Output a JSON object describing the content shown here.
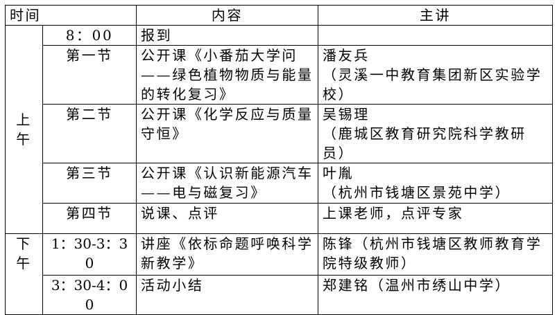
{
  "header": {
    "time": "时间",
    "content": "内容",
    "speaker": "主讲"
  },
  "morning": {
    "label": "上午",
    "rows": [
      {
        "time": "8：00",
        "content": "报到",
        "speaker": ""
      },
      {
        "time": "第一节",
        "content": "公开课《小番茄大学问——绿色植物物质与能量的转化复习》",
        "speaker": "潘友兵\n（灵溪一中教育集团新区实验学校）"
      },
      {
        "time": "第二节",
        "content": "公开课《化学反应与质量守恒》",
        "speaker": "吴锡理\n（鹿城区教育研究院科学教研员）"
      },
      {
        "time": "第三节",
        "content": "公开课《认识新能源汽车——电与磁复习》",
        "speaker": "叶胤\n（杭州市钱塘区景苑中学）"
      },
      {
        "time": "第四节",
        "content": "说课、点评",
        "speaker": "上课老师，点评专家"
      }
    ]
  },
  "afternoon": {
    "label": "下午",
    "rows": [
      {
        "time": "1：30-3：30",
        "content": "讲座《依标命题呼唤科学新教学》",
        "speaker": "陈锋（杭州市钱塘区教师教育学院特级教师）"
      },
      {
        "time": "3：30-4：00",
        "content": "活动小结",
        "speaker": "郑建铭（温州市绣山中学）"
      }
    ]
  }
}
